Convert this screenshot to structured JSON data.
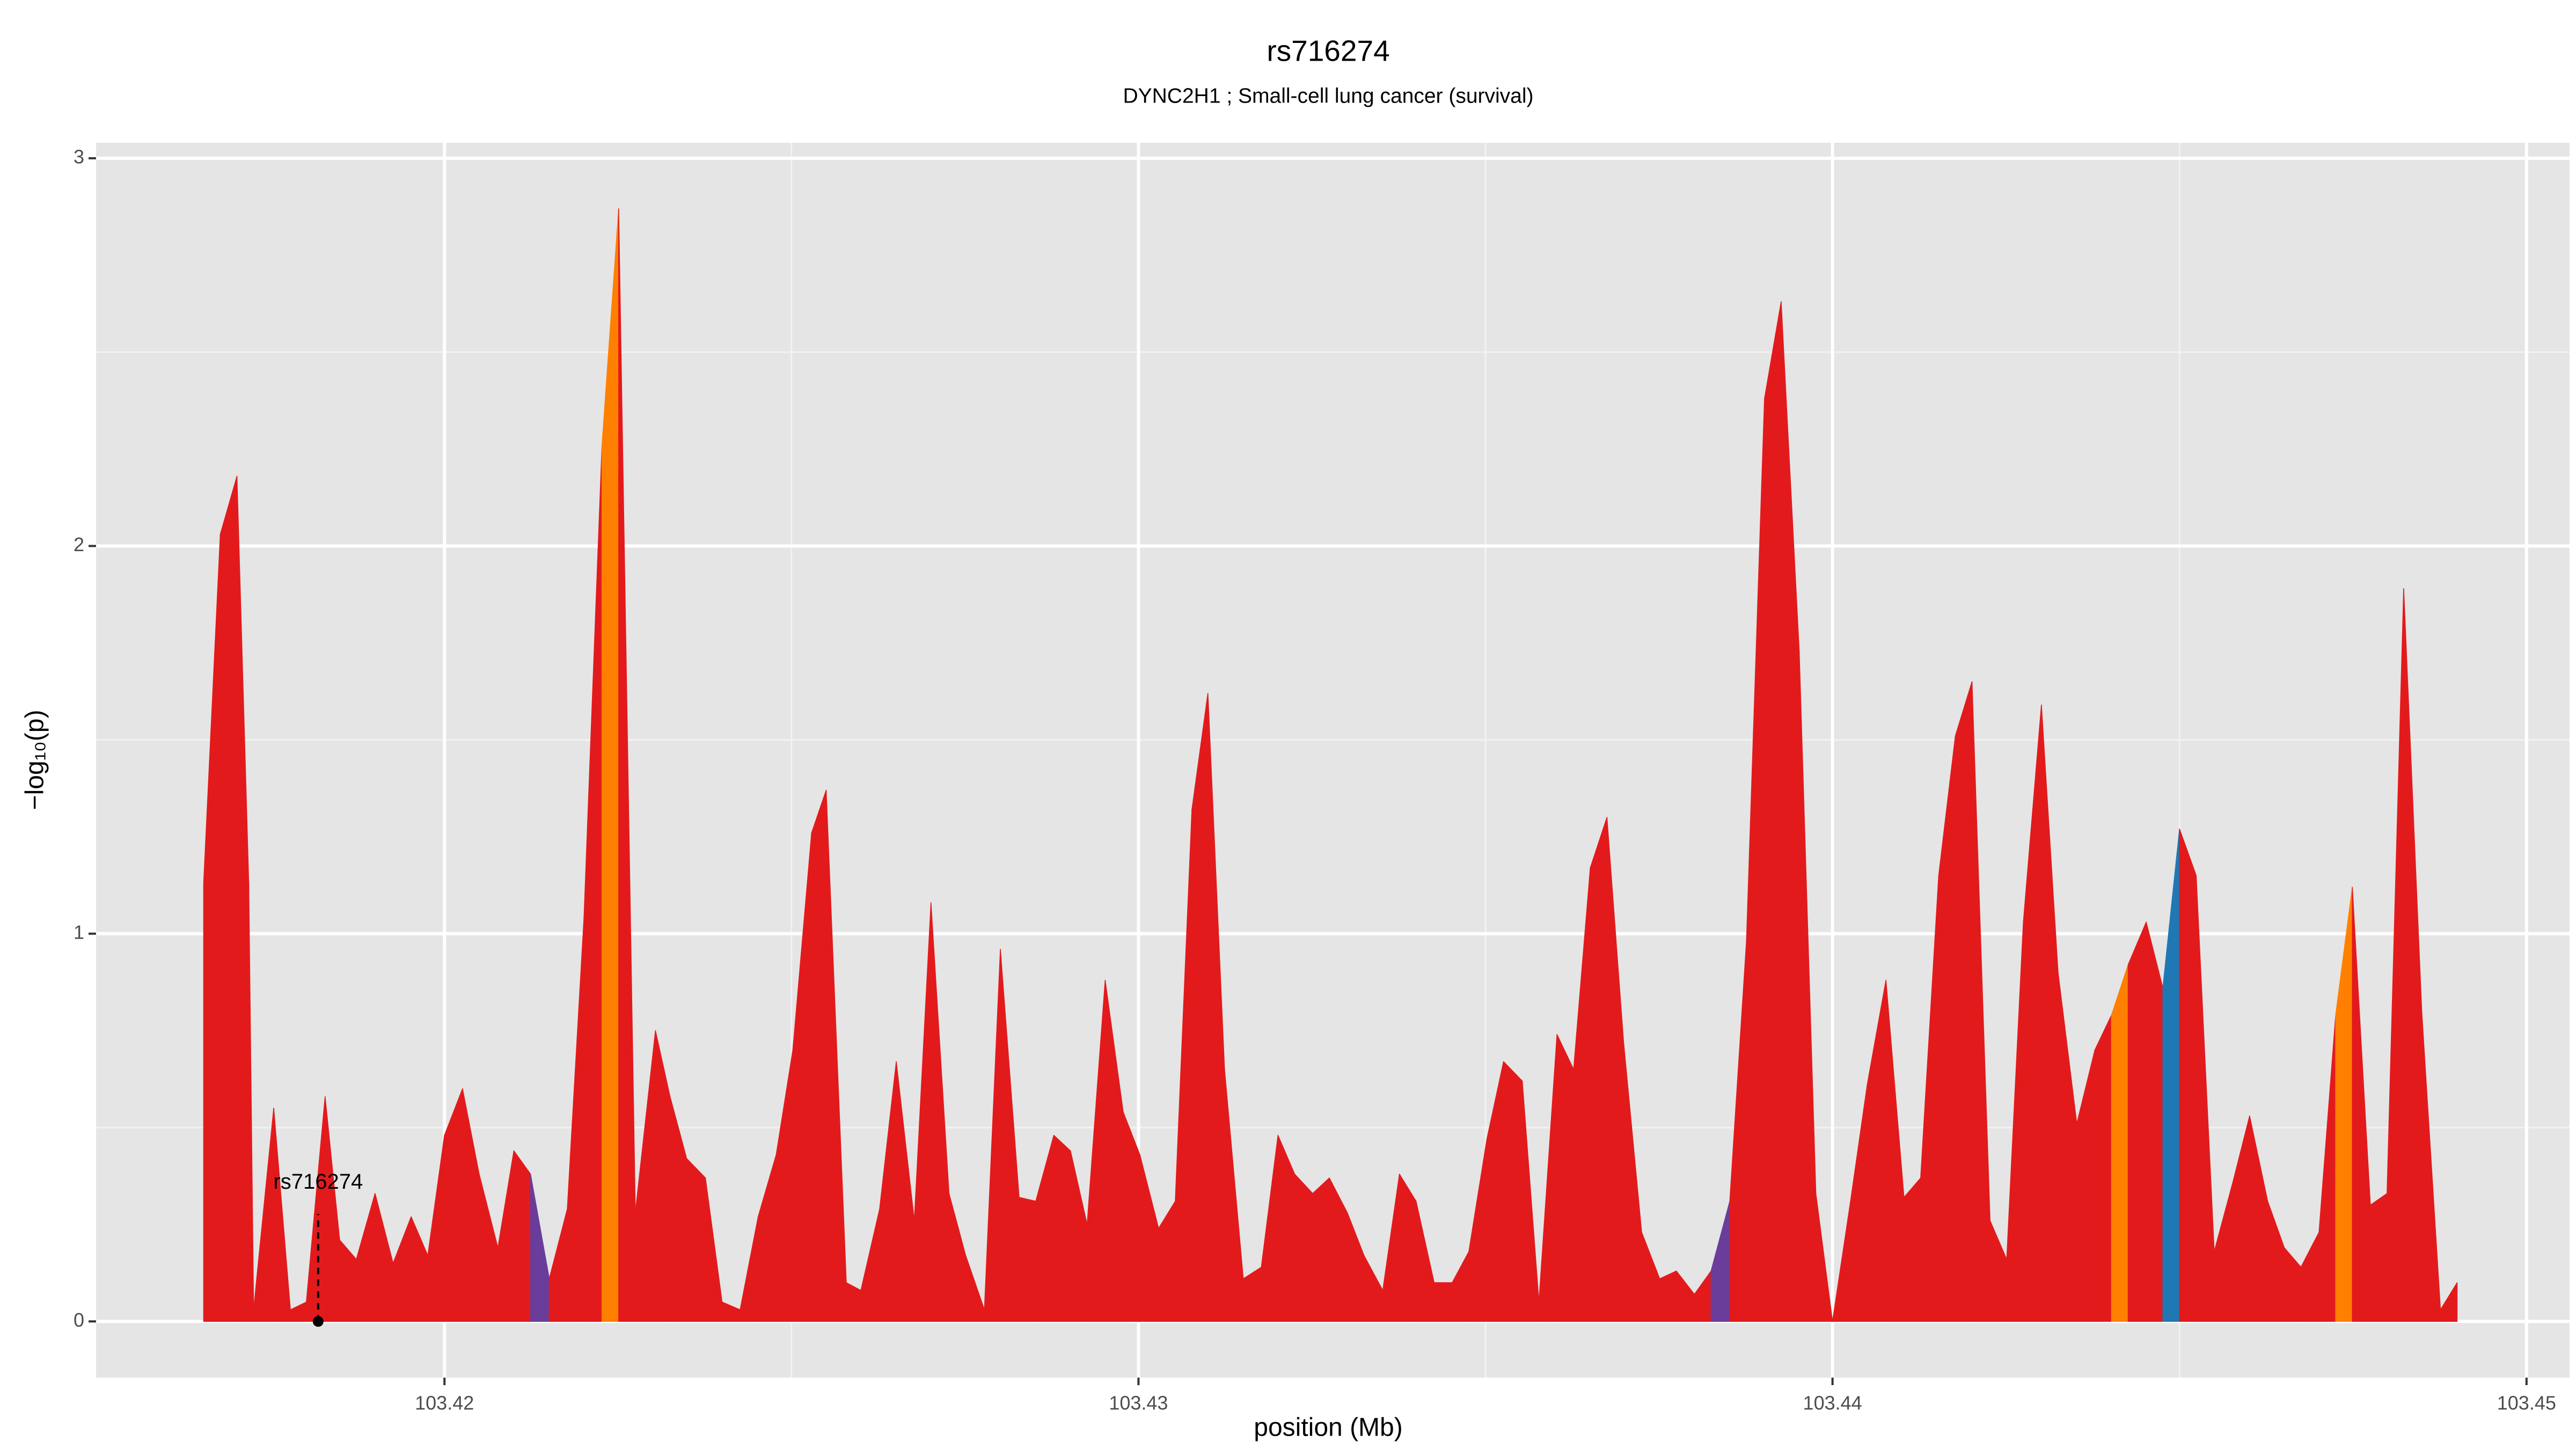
{
  "chart_data": {
    "type": "area",
    "title": "rs716274",
    "subtitle": "DYNC2H1 ; Small-cell lung cancer (survival)",
    "xlabel": "position (Mb)",
    "ylabel": "−log₁₀(p)",
    "xlim": [
      103.41498,
      103.45062
    ],
    "ylim": [
      -0.145,
      3.04
    ],
    "xticks": [
      103.42,
      103.43,
      103.44,
      103.45
    ],
    "yticks": [
      0,
      1,
      2,
      3
    ],
    "grid": true,
    "x": [
      103.41653,
      103.41677,
      103.41701,
      103.41718,
      103.41725,
      103.41754,
      103.41778,
      103.41801,
      103.41828,
      103.41849,
      103.41873,
      103.419,
      103.41926,
      103.41952,
      103.41976,
      103.42,
      103.42026,
      103.4205,
      103.42077,
      103.421,
      103.42124,
      103.42151,
      103.42177,
      103.42201,
      103.42227,
      103.42251,
      103.42275,
      103.42304,
      103.42325,
      103.42349,
      103.42376,
      103.424,
      103.42426,
      103.42452,
      103.42478,
      103.42502,
      103.42529,
      103.4255,
      103.42579,
      103.426,
      103.42627,
      103.42651,
      103.42677,
      103.42701,
      103.42727,
      103.42751,
      103.42778,
      103.42801,
      103.42828,
      103.42852,
      103.42878,
      103.42902,
      103.42926,
      103.42952,
      103.42978,
      103.43002,
      103.43029,
      103.43053,
      103.43077,
      103.431,
      103.43124,
      103.43151,
      103.43177,
      103.43201,
      103.43225,
      103.43251,
      103.43275,
      103.43301,
      103.43325,
      103.43352,
      103.43376,
      103.434,
      103.43426,
      103.43452,
      103.43476,
      103.43502,
      103.43526,
      103.43553,
      103.43577,
      103.43603,
      103.43627,
      103.43651,
      103.43675,
      103.43699,
      103.43725,
      103.43751,
      103.43775,
      103.43801,
      103.43825,
      103.43852,
      103.43876,
      103.43902,
      103.43926,
      103.43952,
      103.43976,
      103.44,
      103.44026,
      103.4405,
      103.44077,
      103.44103,
      103.44127,
      103.44153,
      103.44177,
      103.44201,
      103.44227,
      103.44251,
      103.44275,
      103.44301,
      103.44325,
      103.44352,
      103.44378,
      103.44402,
      103.44426,
      103.44452,
      103.44476,
      103.445,
      103.44524,
      103.4455,
      103.44577,
      103.44601,
      103.44627,
      103.44651,
      103.44675,
      103.44701,
      103.44725,
      103.44749,
      103.44775,
      103.44799,
      103.44823,
      103.44849,
      103.44876,
      103.449
    ],
    "values": [
      1.13,
      2.03,
      2.18,
      1.13,
      0.03,
      0.55,
      0.03,
      0.05,
      0.58,
      0.21,
      0.16,
      0.33,
      0.15,
      0.27,
      0.17,
      0.48,
      0.6,
      0.38,
      0.19,
      0.44,
      0.38,
      0.11,
      0.29,
      1.04,
      2.26,
      2.87,
      0.28,
      0.75,
      0.58,
      0.42,
      0.37,
      0.05,
      0.03,
      0.27,
      0.43,
      0.7,
      1.26,
      1.37,
      0.1,
      0.08,
      0.29,
      0.67,
      0.26,
      1.08,
      0.33,
      0.17,
      0.03,
      0.96,
      0.32,
      0.31,
      0.48,
      0.44,
      0.25,
      0.88,
      0.54,
      0.43,
      0.24,
      0.31,
      1.32,
      1.62,
      0.65,
      0.11,
      0.14,
      0.48,
      0.38,
      0.33,
      0.37,
      0.28,
      0.17,
      0.08,
      0.38,
      0.31,
      0.1,
      0.1,
      0.18,
      0.47,
      0.67,
      0.62,
      0.05,
      0.74,
      0.65,
      1.17,
      1.3,
      0.72,
      0.23,
      0.11,
      0.13,
      0.07,
      0.13,
      0.31,
      0.98,
      2.38,
      2.63,
      1.73,
      0.33,
      0,
      0.31,
      0.61,
      0.88,
      0.32,
      0.37,
      1.15,
      1.51,
      1.65,
      0.26,
      0.16,
      1.03,
      1.59,
      0.9,
      0.51,
      0.7,
      0.79,
      0.92,
      1.03,
      0.86,
      1.27,
      1.15,
      0.18,
      0.36,
      0.53,
      0.31,
      0.19,
      0.14,
      0.23,
      0.79,
      1.12,
      0.3,
      0.33,
      1.89,
      0.8,
      0.03,
      0.1
    ],
    "colors": [
      "#e31a1c",
      "#e31a1c",
      "#e31a1c",
      "#e31a1c",
      "#e31a1c",
      "#e31a1c",
      "#e31a1c",
      "#e31a1c",
      "#e31a1c",
      "#e31a1c",
      "#e31a1c",
      "#e31a1c",
      "#e31a1c",
      "#e31a1c",
      "#e31a1c",
      "#e31a1c",
      "#e31a1c",
      "#e31a1c",
      "#e31a1c",
      "#e31a1c",
      "#6a3d9a",
      "#e31a1c",
      "#e31a1c",
      "#e31a1c",
      "#ff7f00",
      "#e31a1c",
      "#e31a1c",
      "#e31a1c",
      "#e31a1c",
      "#e31a1c",
      "#e31a1c",
      "#e31a1c",
      "#e31a1c",
      "#e31a1c",
      "#e31a1c",
      "#e31a1c",
      "#e31a1c",
      "#e31a1c",
      "#e31a1c",
      "#e31a1c",
      "#e31a1c",
      "#e31a1c",
      "#e31a1c",
      "#e31a1c",
      "#e31a1c",
      "#e31a1c",
      "#e31a1c",
      "#e31a1c",
      "#e31a1c",
      "#e31a1c",
      "#e31a1c",
      "#e31a1c",
      "#e31a1c",
      "#e31a1c",
      "#e31a1c",
      "#e31a1c",
      "#e31a1c",
      "#e31a1c",
      "#e31a1c",
      "#e31a1c",
      "#e31a1c",
      "#e31a1c",
      "#e31a1c",
      "#e31a1c",
      "#e31a1c",
      "#e31a1c",
      "#e31a1c",
      "#e31a1c",
      "#e31a1c",
      "#e31a1c",
      "#e31a1c",
      "#e31a1c",
      "#e31a1c",
      "#e31a1c",
      "#e31a1c",
      "#e31a1c",
      "#e31a1c",
      "#e31a1c",
      "#e31a1c",
      "#e31a1c",
      "#e31a1c",
      "#e31a1c",
      "#e31a1c",
      "#e31a1c",
      "#e31a1c",
      "#e31a1c",
      "#e31a1c",
      "#e31a1c",
      "#6a3d9a",
      "#e31a1c",
      "#e31a1c",
      "#e31a1c",
      "#e31a1c",
      "#e31a1c",
      "#e31a1c",
      "#e31a1c",
      "#e31a1c",
      "#e31a1c",
      "#e31a1c",
      "#e31a1c",
      "#e31a1c",
      "#e31a1c",
      "#e31a1c",
      "#e31a1c",
      "#e31a1c",
      "#e31a1c",
      "#e31a1c",
      "#e31a1c",
      "#e31a1c",
      "#e31a1c",
      "#e31a1c",
      "#ff7f00",
      "#e31a1c",
      "#e31a1c",
      "#1f78b4",
      "#e31a1c",
      "#e31a1c",
      "#e31a1c",
      "#e31a1c",
      "#e31a1c",
      "#e31a1c",
      "#e31a1c",
      "#e31a1c",
      "#e31a1c",
      "#ff7f00",
      "#e31a1c",
      "#e31a1c",
      "#e31a1c",
      "#e31a1c",
      "#e31a1c",
      "#e31a1c",
      "#e31a1c"
    ],
    "annotation": {
      "text": "rs716274",
      "x": 103.41818,
      "y": 0
    }
  }
}
